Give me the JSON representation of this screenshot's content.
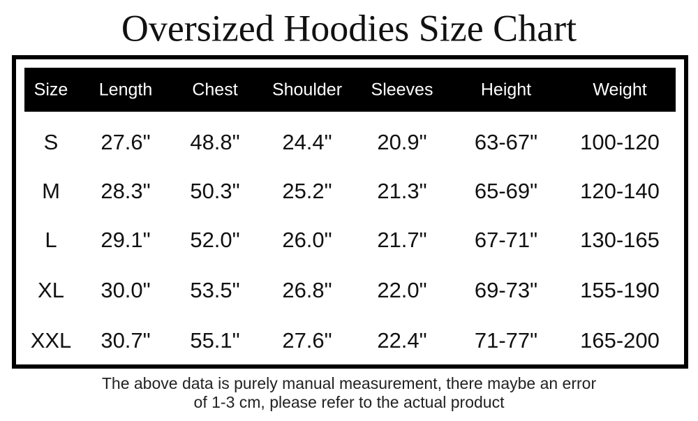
{
  "header": {
    "title": "Oversized Hoodies Size Chart"
  },
  "table": {
    "columns": [
      "Size",
      "Length",
      "Chest",
      "Shoulder",
      "Sleeves",
      "Height",
      "Weight"
    ],
    "rows": [
      [
        "S",
        "27.6\"",
        "48.8\"",
        "24.4\"",
        "20.9\"",
        "63-67\"",
        "100-120"
      ],
      [
        "M",
        "28.3\"",
        "50.3\"",
        "25.2\"",
        "21.3\"",
        "65-69\"",
        "120-140"
      ],
      [
        "L",
        "29.1\"",
        "52.0\"",
        "26.0\"",
        "21.7\"",
        "67-71\"",
        "130-165"
      ],
      [
        "XL",
        "30.0\"",
        "53.5\"",
        "26.8\"",
        "22.0\"",
        "69-73\"",
        "155-190"
      ],
      [
        "XXL",
        "30.7\"",
        "55.1\"",
        "27.6\"",
        "22.4\"",
        "71-77\"",
        "165-200"
      ]
    ]
  },
  "footnote": [
    "The above data is purely manual measurement, there maybe an error",
    "of 1-3 cm, please refer to the actual product"
  ]
}
